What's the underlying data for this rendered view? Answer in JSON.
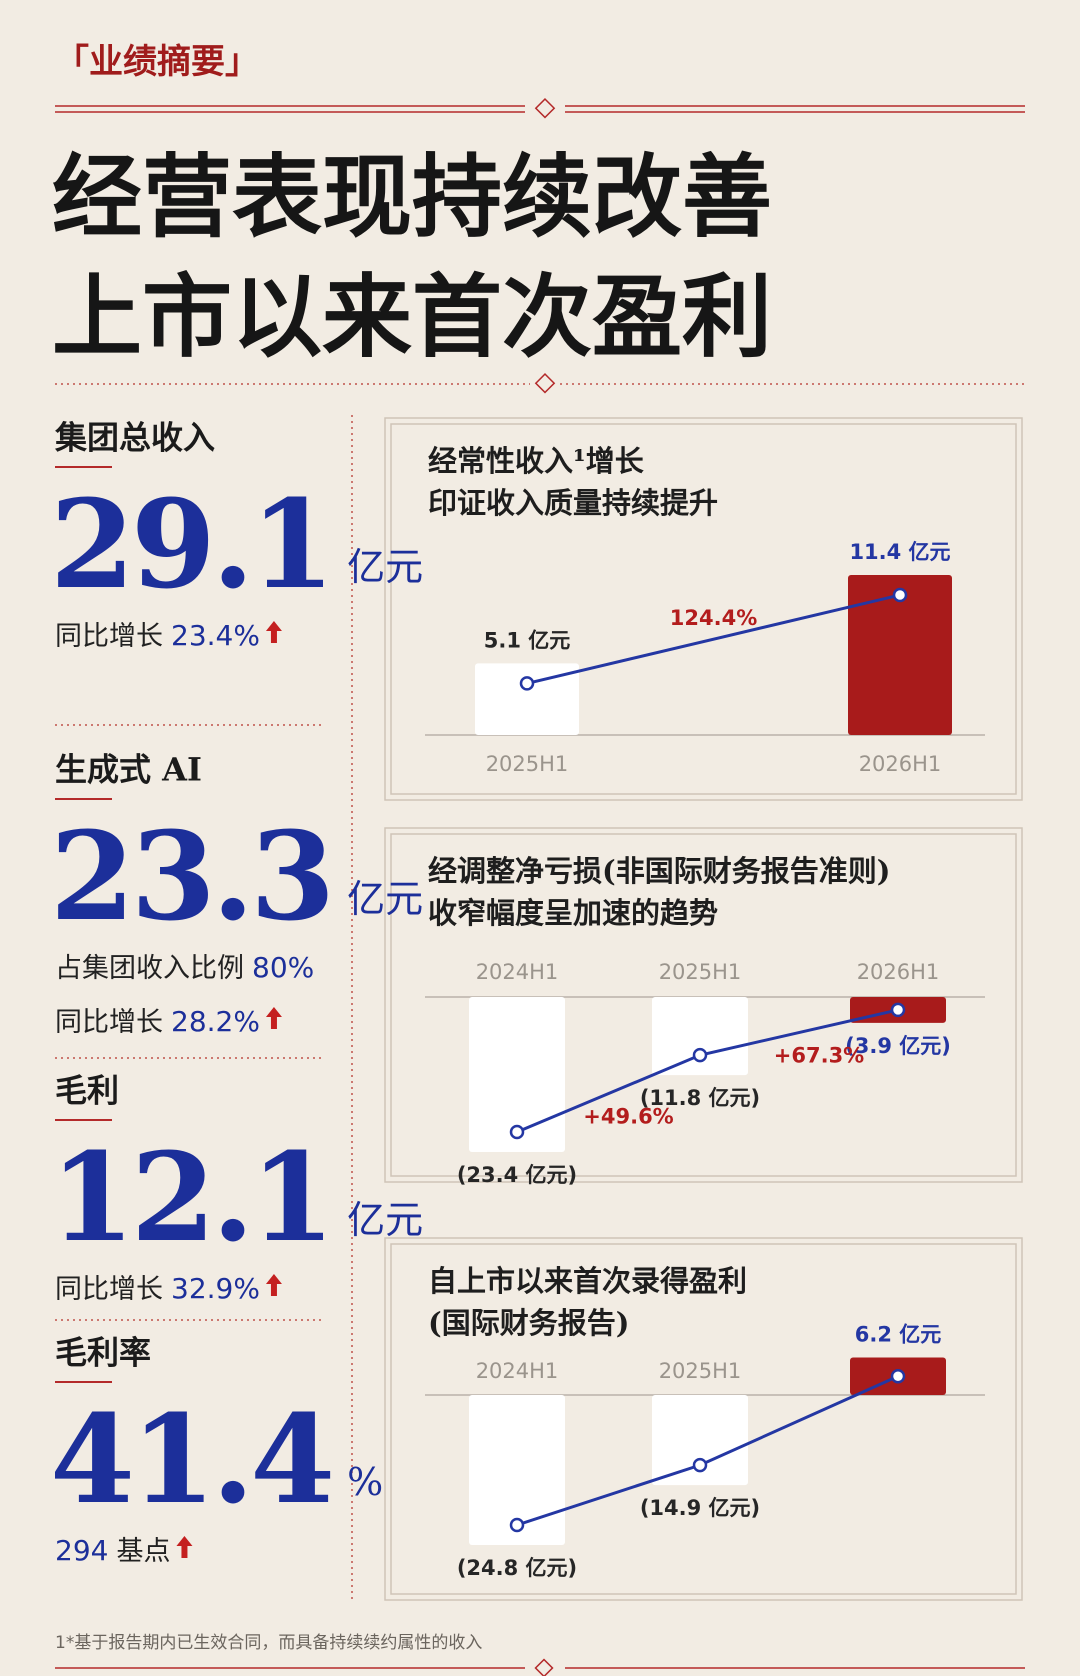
{
  "header": {
    "tag": "「业绩摘要」",
    "title": [
      "经营表现持续改善",
      "上市以来首次盈利"
    ]
  },
  "metrics": [
    {
      "label": "集团总收入",
      "value": 29.1,
      "unit": "亿元",
      "notes": [
        {
          "label": "同比增长",
          "value": "23.4%",
          "arrow": true
        }
      ]
    },
    {
      "label": "生成式 AI",
      "value": 23.3,
      "unit": "亿元",
      "notes": [
        {
          "label": "占集团收入比例",
          "value": "80%",
          "arrow": false
        },
        {
          "label": "同比增长",
          "value": "28.2%",
          "arrow": true
        }
      ]
    },
    {
      "label": "毛利",
      "value": 12.1,
      "unit": "亿元",
      "notes": [
        {
          "label": "同比增长",
          "value": "32.9%",
          "arrow": true
        }
      ]
    },
    {
      "label": "毛利率",
      "value": 41.4,
      "unit": "%",
      "notes": [
        {
          "value": "294",
          "label": "基点",
          "arrow": true,
          "value_first": true
        }
      ]
    }
  ],
  "chart_data": [
    {
      "type": "bar",
      "title": [
        "经常性收入¹增长",
        "印证收入质量持续提升"
      ],
      "categories": [
        "2025H1",
        "2026H1"
      ],
      "values": [
        5.1,
        11.4
      ],
      "value_labels": [
        "5.1 亿元",
        "11.4 亿元"
      ],
      "changes": [
        "124.4%"
      ],
      "colors": [
        "#ffffff",
        "#a81b1b"
      ],
      "line_color": "#2437a3"
    },
    {
      "type": "bar",
      "title": [
        "经调整净亏损(非国际财务报告准则)",
        "收窄幅度呈加速的趋势"
      ],
      "categories": [
        "2024H1",
        "2025H1",
        "2026H1"
      ],
      "values": [
        -23.4,
        -11.8,
        -3.9
      ],
      "value_labels": [
        "(23.4 亿元)",
        "(11.8 亿元)",
        "(3.9 亿元)"
      ],
      "changes": [
        "+49.6%",
        "+67.3%"
      ],
      "colors": [
        "#ffffff",
        "#ffffff",
        "#a81b1b"
      ],
      "line_color": "#2437a3"
    },
    {
      "type": "bar",
      "title": [
        "自上市以来首次录得盈利",
        "(国际财务报告)"
      ],
      "categories": [
        "2024H1",
        "2025H1",
        null
      ],
      "values": [
        -24.8,
        -14.9,
        6.2
      ],
      "value_labels": [
        "(24.8 亿元)",
        "(14.9 亿元)",
        "6.2 亿元"
      ],
      "colors": [
        "#ffffff",
        "#ffffff",
        "#a81b1b"
      ],
      "line_color": "#2437a3"
    }
  ],
  "footnote": "1*基于报告期内已生效合同，而具备持续续约属性的收入"
}
